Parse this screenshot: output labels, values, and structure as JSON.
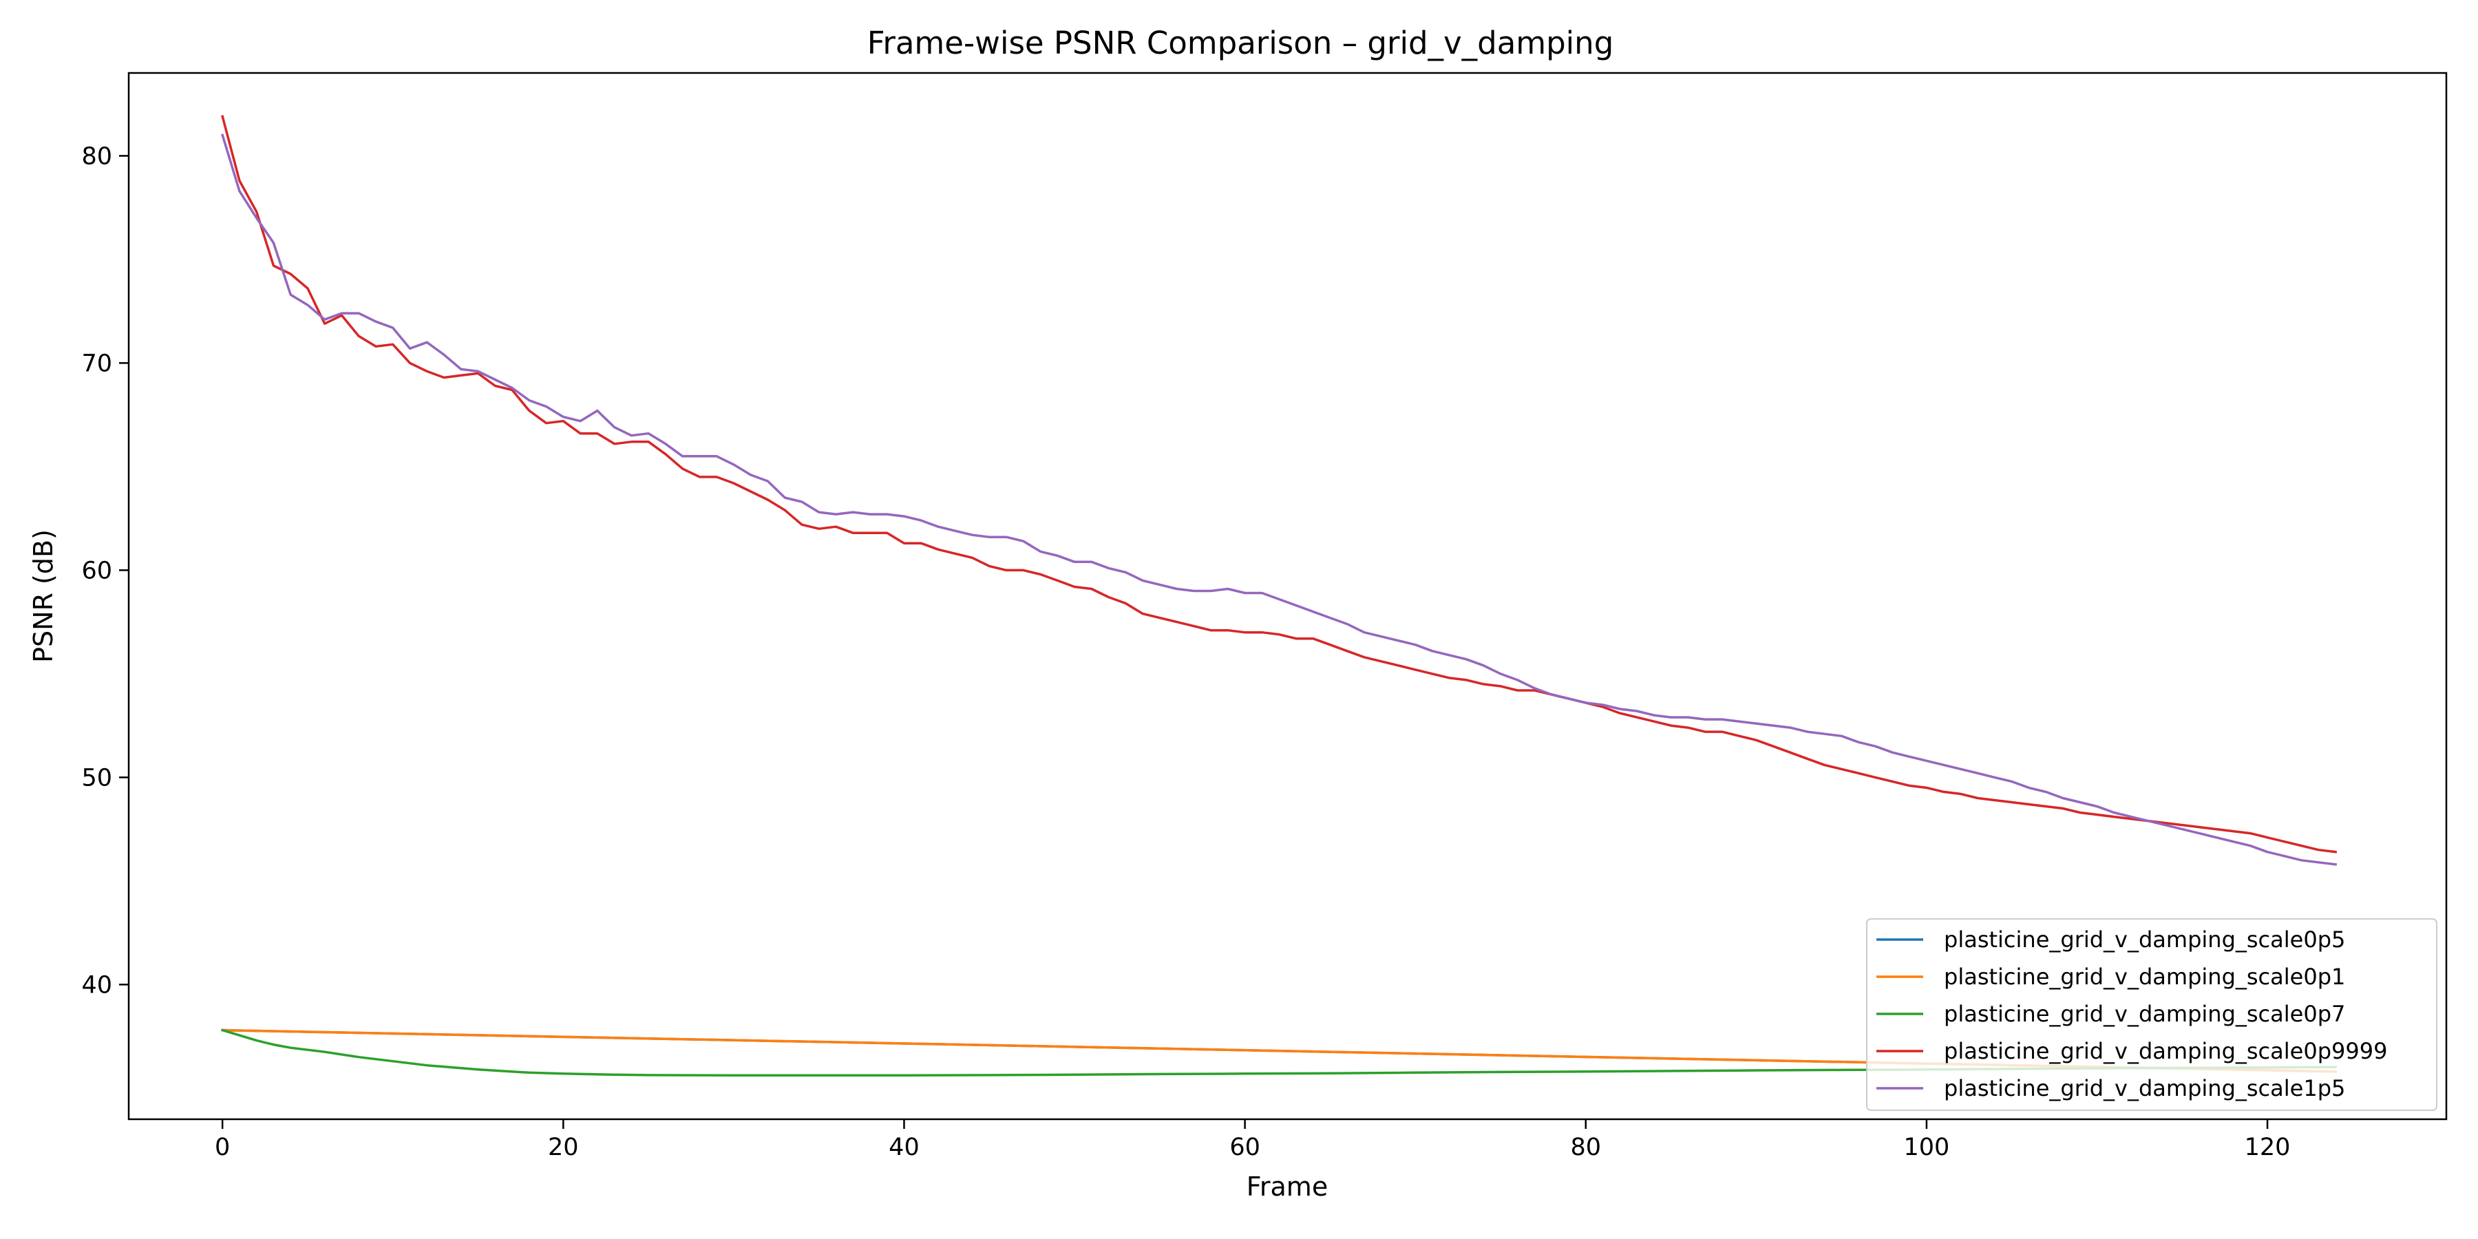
{
  "chart_data": {
    "type": "line",
    "title": "Frame-wise PSNR Comparison – grid_v_damping",
    "xlabel": "Frame",
    "ylabel": "PSNR (dB)",
    "xlim": [
      -5.5,
      130.5
    ],
    "ylim": [
      33.5,
      84.0
    ],
    "xticks": [
      0,
      20,
      40,
      60,
      80,
      100,
      120
    ],
    "yticks": [
      40,
      50,
      60,
      70,
      80
    ],
    "grid": false,
    "legend_position": "lower-right",
    "series": [
      {
        "name": "plasticine_grid_v_damping_scale0p5",
        "color": "#1f77b4",
        "x": [
          0,
          124
        ],
        "y": [
          37.8,
          35.8
        ]
      },
      {
        "name": "plasticine_grid_v_damping_scale0p1",
        "color": "#ff7f0e",
        "x": [
          0,
          124
        ],
        "y": [
          37.8,
          35.8
        ]
      },
      {
        "name": "plasticine_grid_v_damping_scale0p7",
        "color": "#2ca02c",
        "x": [
          0,
          1,
          2,
          3,
          4,
          5,
          6,
          8,
          10,
          12,
          15,
          18,
          20,
          23,
          25,
          30,
          35,
          40,
          45,
          50,
          55,
          60,
          65,
          70,
          75,
          80,
          85,
          90,
          95,
          100,
          105,
          110,
          115,
          120,
          124
        ],
        "y": [
          37.8,
          37.55,
          37.3,
          37.1,
          36.95,
          36.85,
          36.75,
          36.5,
          36.3,
          36.1,
          35.9,
          35.75,
          35.7,
          35.65,
          35.63,
          35.62,
          35.62,
          35.62,
          35.63,
          35.65,
          35.68,
          35.7,
          35.72,
          35.75,
          35.78,
          35.8,
          35.83,
          35.86,
          35.88,
          35.9,
          35.93,
          35.96,
          35.98,
          36.0,
          36.02
        ]
      },
      {
        "name": "plasticine_grid_v_damping_scale0p9999",
        "color": "#d62728",
        "x": [
          0,
          1,
          2,
          3,
          4,
          5,
          6,
          7,
          8,
          9,
          10,
          11,
          12,
          13,
          14,
          15,
          16,
          17,
          18,
          19,
          20,
          21,
          22,
          23,
          24,
          25,
          26,
          27,
          28,
          29,
          30,
          31,
          32,
          33,
          34,
          35,
          36,
          37,
          38,
          39,
          40,
          41,
          42,
          43,
          44,
          45,
          46,
          47,
          48,
          49,
          50,
          51,
          52,
          53,
          54,
          55,
          56,
          57,
          58,
          59,
          60,
          61,
          62,
          63,
          64,
          65,
          66,
          67,
          68,
          69,
          70,
          71,
          72,
          73,
          74,
          75,
          76,
          77,
          78,
          79,
          80,
          81,
          82,
          83,
          84,
          85,
          86,
          87,
          88,
          89,
          90,
          91,
          92,
          93,
          94,
          95,
          96,
          97,
          98,
          99,
          100,
          101,
          102,
          103,
          104,
          105,
          106,
          107,
          108,
          109,
          110,
          111,
          112,
          113,
          114,
          115,
          116,
          117,
          118,
          119,
          120,
          121,
          122,
          123,
          124
        ],
        "y": [
          81.9,
          78.8,
          77.3,
          74.7,
          74.3,
          73.6,
          71.9,
          72.3,
          71.3,
          70.8,
          70.9,
          70.0,
          69.6,
          69.3,
          69.4,
          69.5,
          68.9,
          68.7,
          67.7,
          67.1,
          67.2,
          66.6,
          66.6,
          66.1,
          66.2,
          66.2,
          65.6,
          64.9,
          64.5,
          64.5,
          64.2,
          63.8,
          63.4,
          62.9,
          62.2,
          62.0,
          62.1,
          61.8,
          61.8,
          61.8,
          61.3,
          61.3,
          61.0,
          60.8,
          60.6,
          60.2,
          60.0,
          60.0,
          59.8,
          59.5,
          59.2,
          59.1,
          58.7,
          58.4,
          57.9,
          57.7,
          57.5,
          57.3,
          57.1,
          57.1,
          57.0,
          57.0,
          56.9,
          56.7,
          56.7,
          56.4,
          56.1,
          55.8,
          55.6,
          55.4,
          55.2,
          55.0,
          54.8,
          54.7,
          54.5,
          54.4,
          54.2,
          54.2,
          54.0,
          53.8,
          53.6,
          53.4,
          53.1,
          52.9,
          52.7,
          52.5,
          52.4,
          52.2,
          52.2,
          52.0,
          51.8,
          51.5,
          51.2,
          50.9,
          50.6,
          50.4,
          50.2,
          50.0,
          49.8,
          49.6,
          49.5,
          49.3,
          49.2,
          49.0,
          48.9,
          48.8,
          48.7,
          48.6,
          48.5,
          48.3,
          48.2,
          48.1,
          48.0,
          47.9,
          47.8,
          47.7,
          47.6,
          47.5,
          47.4,
          47.3,
          47.1,
          46.9,
          46.7,
          46.5,
          46.4
        ]
      },
      {
        "name": "plasticine_grid_v_damping_scale1p5",
        "color": "#9467bd",
        "x": [
          0,
          1,
          2,
          3,
          4,
          5,
          6,
          7,
          8,
          9,
          10,
          11,
          12,
          13,
          14,
          15,
          16,
          17,
          18,
          19,
          20,
          21,
          22,
          23,
          24,
          25,
          26,
          27,
          28,
          29,
          30,
          31,
          32,
          33,
          34,
          35,
          36,
          37,
          38,
          39,
          40,
          41,
          42,
          43,
          44,
          45,
          46,
          47,
          48,
          49,
          50,
          51,
          52,
          53,
          54,
          55,
          56,
          57,
          58,
          59,
          60,
          61,
          62,
          63,
          64,
          65,
          66,
          67,
          68,
          69,
          70,
          71,
          72,
          73,
          74,
          75,
          76,
          77,
          78,
          79,
          80,
          81,
          82,
          83,
          84,
          85,
          86,
          87,
          88,
          89,
          90,
          91,
          92,
          93,
          94,
          95,
          96,
          97,
          98,
          99,
          100,
          101,
          102,
          103,
          104,
          105,
          106,
          107,
          108,
          109,
          110,
          111,
          112,
          113,
          114,
          115,
          116,
          117,
          118,
          119,
          120,
          121,
          122,
          123,
          124
        ],
        "y": [
          81.0,
          78.3,
          77.0,
          75.8,
          73.3,
          72.8,
          72.1,
          72.4,
          72.4,
          72.0,
          71.7,
          70.7,
          71.0,
          70.4,
          69.7,
          69.6,
          69.2,
          68.8,
          68.2,
          67.9,
          67.4,
          67.2,
          67.7,
          66.9,
          66.5,
          66.6,
          66.1,
          65.5,
          65.5,
          65.5,
          65.1,
          64.6,
          64.3,
          63.5,
          63.3,
          62.8,
          62.7,
          62.8,
          62.7,
          62.7,
          62.6,
          62.4,
          62.1,
          61.9,
          61.7,
          61.6,
          61.6,
          61.4,
          60.9,
          60.7,
          60.4,
          60.4,
          60.1,
          59.9,
          59.5,
          59.3,
          59.1,
          59.0,
          59.0,
          59.1,
          58.9,
          58.9,
          58.6,
          58.3,
          58.0,
          57.7,
          57.4,
          57.0,
          56.8,
          56.6,
          56.4,
          56.1,
          55.9,
          55.7,
          55.4,
          55.0,
          54.7,
          54.3,
          54.0,
          53.8,
          53.6,
          53.5,
          53.3,
          53.2,
          53.0,
          52.9,
          52.9,
          52.8,
          52.8,
          52.7,
          52.6,
          52.5,
          52.4,
          52.2,
          52.1,
          52.0,
          51.7,
          51.5,
          51.2,
          51.0,
          50.8,
          50.6,
          50.4,
          50.2,
          50.0,
          49.8,
          49.5,
          49.3,
          49.0,
          48.8,
          48.6,
          48.3,
          48.1,
          47.9,
          47.7,
          47.5,
          47.3,
          47.1,
          46.9,
          46.7,
          46.4,
          46.2,
          46.0,
          45.9,
          45.8
        ]
      }
    ]
  }
}
